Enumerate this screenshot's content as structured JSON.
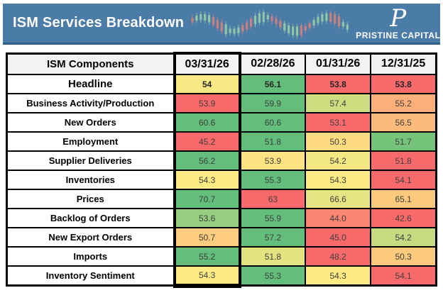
{
  "banner": {
    "title": "ISM Services Breakdown",
    "logo_monogram": "P",
    "logo_text": "PRISTINE CAPITAL",
    "background_color": "#4B7CA7",
    "candle_up_color": "#8FC7A6",
    "candle_down_color": "#C9807F"
  },
  "chart_data": {
    "type": "heatmap",
    "title": "ISM Services Breakdown",
    "corner_header": "ISM Components",
    "columns": [
      "03/31/26",
      "02/28/26",
      "01/31/26",
      "12/31/25"
    ],
    "highlighted_column_index": 0,
    "rows": [
      {
        "label": "Headline",
        "values": [
          "54",
          "56.1",
          "53.8",
          "53.8"
        ],
        "emphasis": true
      },
      {
        "label": "Business Activity/Production",
        "values": [
          "53.9",
          "59.9",
          "57.4",
          "55.2"
        ]
      },
      {
        "label": "New Orders",
        "values": [
          "60.6",
          "60.6",
          "53.1",
          "56.5"
        ]
      },
      {
        "label": "Employment",
        "values": [
          "45.2",
          "51.8",
          "50.3",
          "51.7"
        ]
      },
      {
        "label": "Supplier Deliveries",
        "values": [
          "56.2",
          "53.9",
          "54.2",
          "51.8"
        ]
      },
      {
        "label": "Inventories",
        "values": [
          "54.3",
          "55.3",
          "54.3",
          "54.1"
        ]
      },
      {
        "label": "Prices",
        "values": [
          "70.7",
          "63",
          "66.6",
          "65.1"
        ]
      },
      {
        "label": "Backlog of Orders",
        "values": [
          "53.6",
          "55.9",
          "44.0",
          "42.6"
        ]
      },
      {
        "label": "New Export Orders",
        "values": [
          "50.7",
          "57.2",
          "45.0",
          "54.2"
        ]
      },
      {
        "label": "Imports",
        "values": [
          "55.2",
          "51.8",
          "48.2",
          "50.3"
        ]
      },
      {
        "label": "Inventory Sentiment",
        "values": [
          "54.3",
          "55.3",
          "54.3",
          "54.1"
        ]
      }
    ],
    "color_scale": {
      "mode": "per-row 3-color scale (min red, median yellow, max green)",
      "min_color": "#F8696B",
      "mid_color": "#FFEB84",
      "max_color": "#63BE7B"
    }
  }
}
